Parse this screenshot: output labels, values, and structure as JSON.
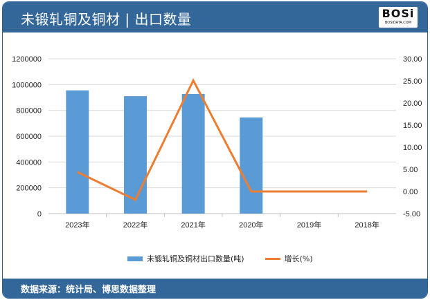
{
  "header": {
    "title": "未锻轧铜及铜材 | 出口数量",
    "logo_text": "BOSi",
    "logo_sub": "BOSIDATA.COM"
  },
  "footer": {
    "source": "数据来源：统计局、博思数据整理"
  },
  "colors": {
    "header": "#336699",
    "bar": "#5b9bd5",
    "line": "#ed7d31"
  },
  "chart_data": {
    "type": "bar+line",
    "categories": [
      "2023年",
      "2022年",
      "2021年",
      "2020年",
      "2019年",
      "2018年"
    ],
    "series": [
      {
        "name": "未锻轧铜及铜材出口数量(吨)",
        "type": "bar",
        "axis": "left",
        "values": [
          955000,
          910000,
          927000,
          745000,
          null,
          null
        ]
      },
      {
        "name": "增长(%)",
        "type": "line",
        "axis": "right",
        "values": [
          4.4,
          -1.9,
          25.1,
          0,
          0,
          0
        ]
      }
    ],
    "left_axis": {
      "ylim": [
        0,
        1200000
      ],
      "ticks": [
        "0",
        "200000",
        "400000",
        "600000",
        "800000",
        "1000000",
        "1200000"
      ]
    },
    "right_axis": {
      "ylim": [
        -5,
        30
      ],
      "ticks": [
        "-5.00",
        "0.00",
        "5.00",
        "10.00",
        "15.00",
        "20.00",
        "25.00",
        "30.00"
      ]
    },
    "grid": true,
    "legend": "bottom"
  }
}
